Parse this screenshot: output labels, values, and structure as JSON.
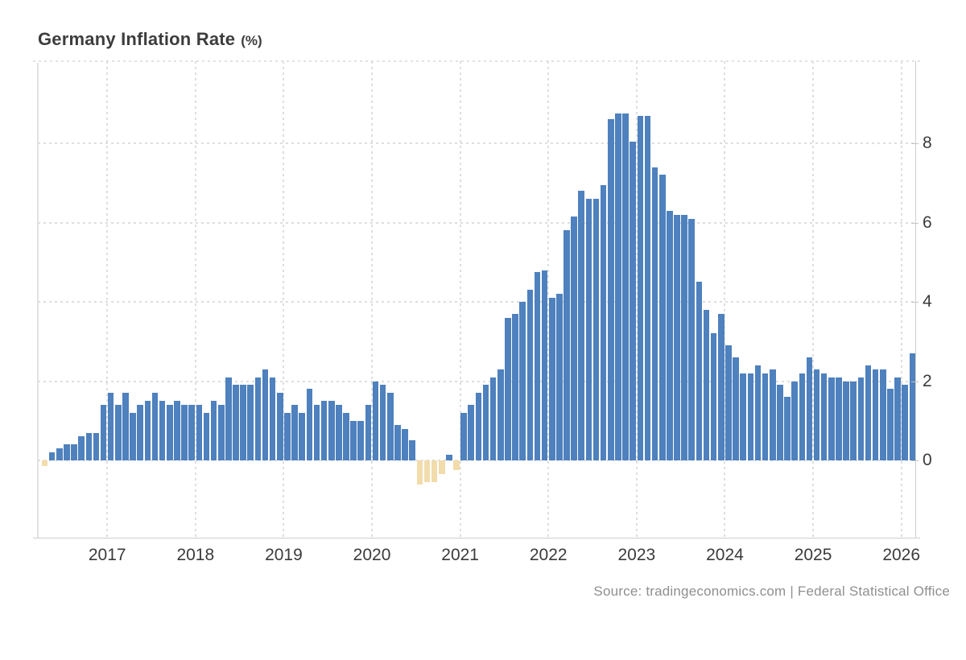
{
  "title": {
    "main": "Germany Inflation Rate",
    "unit": "(%)"
  },
  "source_text": "Source: tradingeconomics.com | Federal Statistical Office",
  "colors": {
    "bar_positive": "#4e81bd",
    "bar_negative": "#f2dcab",
    "gridline": "#dedede",
    "axis_line": "#cfcfcf",
    "tick_label": "#3b3b3b",
    "title_text": "#3d3d3d",
    "source_text": "#8f8f8f",
    "background": "#ffffff"
  },
  "chart_data": {
    "type": "bar",
    "title": "Germany Inflation Rate (%)",
    "xlabel": "",
    "ylabel": "",
    "unit": "percent",
    "ylim": [
      -1.95,
      10.05
    ],
    "yticks": [
      0,
      2,
      4,
      6,
      8
    ],
    "grid": "dotted",
    "legend": "none",
    "start_month": "2016-04",
    "end_month": "2026-02",
    "x_year_labels": [
      "2017",
      "2018",
      "2019",
      "2020",
      "2021",
      "2022",
      "2023",
      "2024",
      "2025",
      "2026"
    ],
    "series_name": "Inflation Rate (YoY %)",
    "monthly_values": [
      {
        "year": 2016,
        "first_month": "Apr",
        "values": [
          -0.15,
          0.2,
          0.3,
          0.4,
          0.4,
          0.6,
          0.7,
          0.7,
          1.4
        ]
      },
      {
        "year": 2017,
        "first_month": "Jan",
        "values": [
          1.7,
          1.4,
          1.7,
          1.2,
          1.4,
          1.5,
          1.7,
          1.5,
          1.4,
          1.5,
          1.4,
          1.4
        ]
      },
      {
        "year": 2018,
        "first_month": "Jan",
        "values": [
          1.4,
          1.2,
          1.5,
          1.4,
          2.1,
          1.9,
          1.9,
          1.9,
          2.1,
          2.3,
          2.1,
          1.7
        ]
      },
      {
        "year": 2019,
        "first_month": "Jan",
        "values": [
          1.2,
          1.4,
          1.2,
          1.8,
          1.4,
          1.5,
          1.5,
          1.4,
          1.2,
          1.0,
          1.0,
          1.4
        ]
      },
      {
        "year": 2020,
        "first_month": "Jan",
        "values": [
          2.0,
          1.9,
          1.7,
          0.9,
          0.8,
          0.5,
          -0.6,
          -0.55,
          -0.55,
          -0.35,
          0.15,
          -0.25
        ]
      },
      {
        "year": 2021,
        "first_month": "Jan",
        "values": [
          1.2,
          1.4,
          1.7,
          1.9,
          2.1,
          2.3,
          3.6,
          3.7,
          4.0,
          4.3,
          4.75,
          4.8
        ]
      },
      {
        "year": 2022,
        "first_month": "Jan",
        "values": [
          4.1,
          4.2,
          5.8,
          6.15,
          6.8,
          6.6,
          6.6,
          6.95,
          8.6,
          8.75,
          8.75,
          8.05
        ]
      },
      {
        "year": 2023,
        "first_month": "Jan",
        "values": [
          8.7,
          8.7,
          7.4,
          7.2,
          6.3,
          6.2,
          6.2,
          6.1,
          4.5,
          3.8,
          3.2,
          3.7
        ]
      },
      {
        "year": 2024,
        "first_month": "Jan",
        "values": [
          2.9,
          2.6,
          2.2,
          2.2,
          2.4,
          2.2,
          2.3,
          1.9,
          1.6,
          2.0,
          2.2,
          2.6
        ]
      },
      {
        "year": 2025,
        "first_month": "Jan",
        "values": [
          2.3,
          2.2,
          2.1,
          2.1,
          2.0,
          2.0,
          2.1,
          2.4,
          2.3,
          2.3,
          1.8,
          2.1
        ]
      },
      {
        "year": 2026,
        "first_month": "Jan",
        "values": [
          1.9,
          2.7
        ]
      }
    ]
  }
}
